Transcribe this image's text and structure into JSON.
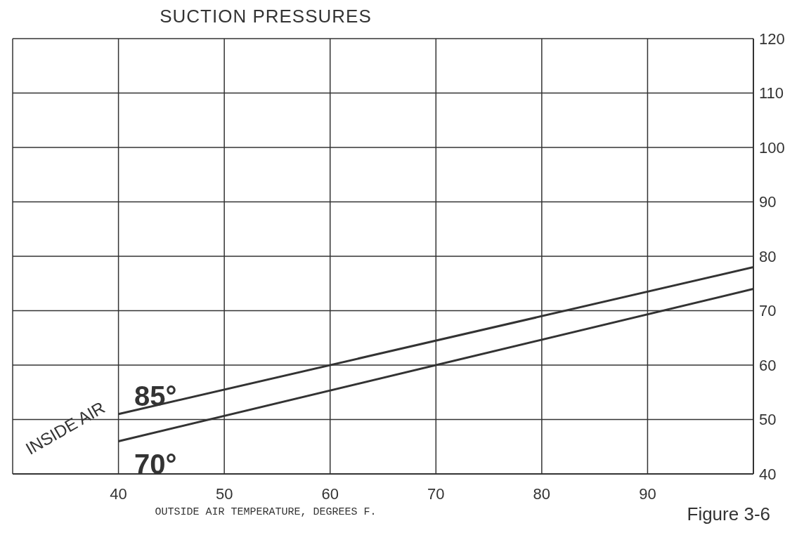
{
  "chart_data": {
    "type": "line",
    "title": "SUCTION PRESSURES",
    "xlabel": "OUTSIDE AIR TEMPERATURE, DEGREES F.",
    "x": [
      40,
      100
    ],
    "series": [
      {
        "name": "85°",
        "color": "#333333",
        "values": [
          51,
          78
        ]
      },
      {
        "name": "70°",
        "color": "#333333",
        "values": [
          46,
          74
        ]
      }
    ],
    "xlim": [
      30,
      100
    ],
    "xticks": [
      40,
      50,
      60,
      70,
      80,
      90
    ],
    "ylim": [
      40,
      120
    ],
    "yticks": [
      40,
      50,
      60,
      70,
      80,
      90,
      100,
      110,
      120
    ],
    "grid": true,
    "marker": "none",
    "line_style": "solid",
    "annotations": [
      "INSIDE AIR",
      "Figure 3-6"
    ]
  }
}
